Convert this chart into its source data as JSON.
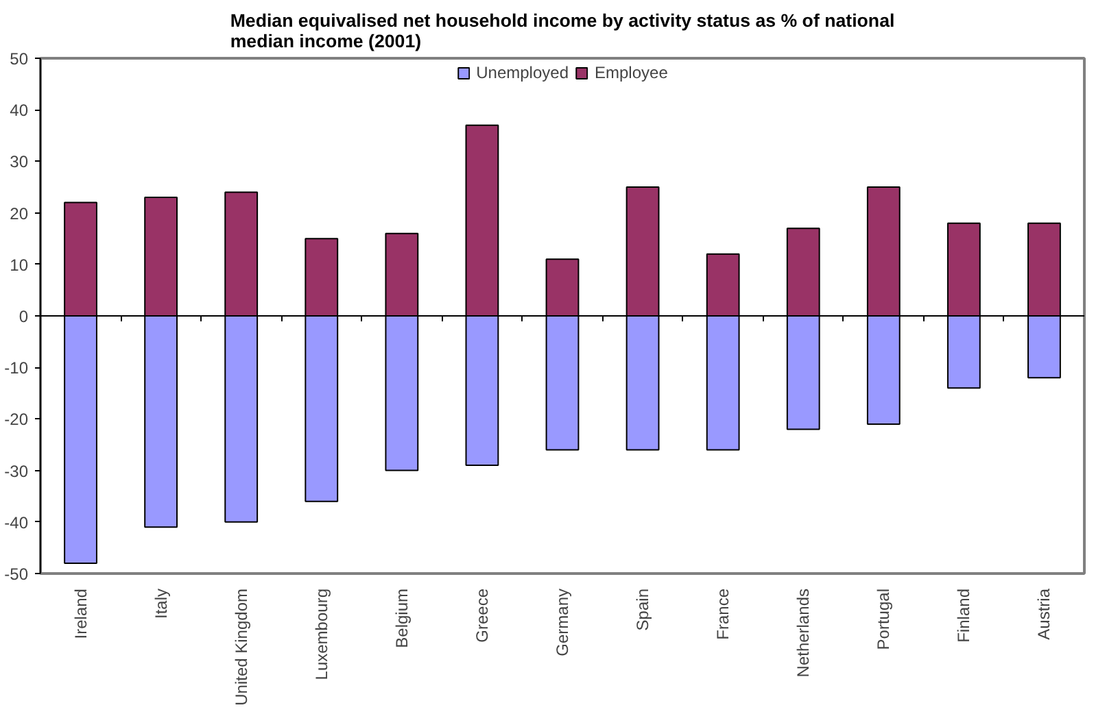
{
  "chart_data": {
    "type": "bar",
    "title": "Median equivalised net household income by activity status as % of national median income (2001)",
    "categories": [
      "Ireland",
      "Italy",
      "United Kingdom",
      "Luxembourg",
      "Belgium",
      "Greece",
      "Germany",
      "Spain",
      "France",
      "Netherlands",
      "Portugal",
      "Finland",
      "Austria"
    ],
    "stacked": true,
    "series": [
      {
        "name": "Unemployed",
        "color": "#9999ff",
        "values": [
          -48,
          -41,
          -40,
          -36,
          -30,
          -29,
          -26,
          -26,
          -26,
          -22,
          -21,
          -14,
          -12
        ]
      },
      {
        "name": "Employee",
        "color": "#993366",
        "values": [
          22,
          23,
          24,
          15,
          16,
          37,
          11,
          25,
          12,
          17,
          25,
          18,
          18
        ]
      }
    ],
    "ylim": [
      -50,
      50
    ],
    "yticks": [
      -50,
      -40,
      -30,
      -20,
      -10,
      0,
      10,
      20,
      30,
      40,
      50
    ],
    "legend": "top"
  }
}
